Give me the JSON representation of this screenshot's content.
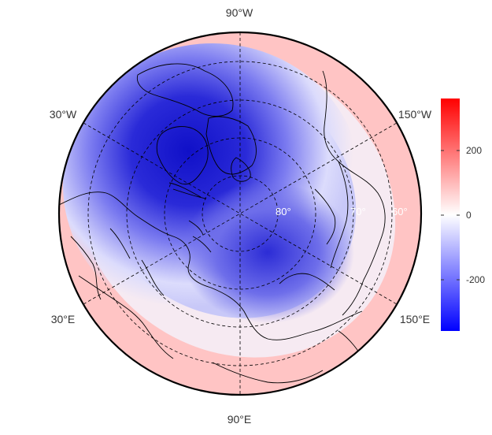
{
  "longitude_labels": {
    "top": "90°W",
    "upper_left": "30°W",
    "upper_right": "150°W",
    "lower_left": "30°E",
    "lower_right": "150°E",
    "bottom": "90°E"
  },
  "latitude_labels": [
    "80°",
    "70°",
    "60°"
  ],
  "colorbar": {
    "ticks": [
      "200",
      "0",
      "-200"
    ],
    "range": [
      -360,
      360
    ],
    "colors": {
      "low": "#0000ff",
      "mid": "#ffffff",
      "high": "#ff0000"
    }
  },
  "colors": {
    "field_low": "#1a1acc",
    "field_high": "#ffb8b8",
    "coastline": "#000000",
    "graticule": "#000000"
  }
}
